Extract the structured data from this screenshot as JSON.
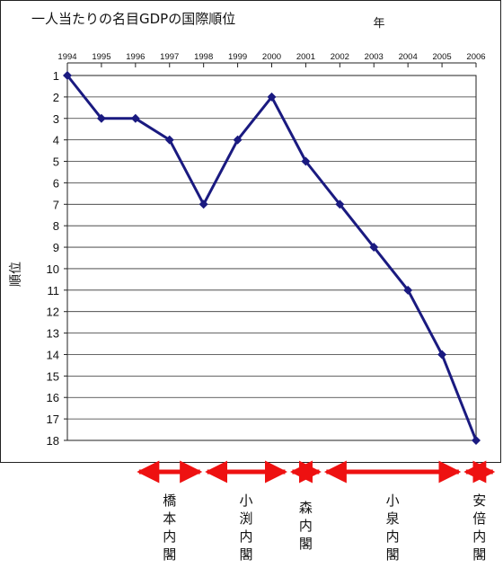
{
  "chart_data": {
    "type": "line",
    "title": "一人当たりの名目GDPの国際順位",
    "xlabel": "年",
    "ylabel": "順位",
    "x": [
      1994,
      1995,
      1996,
      1997,
      1998,
      1999,
      2000,
      2001,
      2002,
      2003,
      2004,
      2005,
      2006
    ],
    "series": [
      {
        "values": [
          1,
          3,
          3,
          4,
          7,
          4,
          2,
          5,
          7,
          9,
          11,
          14,
          18
        ]
      }
    ],
    "ylim": [
      1,
      18
    ],
    "y_inverted": true,
    "x_axis_position": "top",
    "grid": true,
    "line_color": "#1a1a80",
    "annotations": [
      {
        "label": "橋本内閣",
        "start": 1996,
        "end": 1998
      },
      {
        "label": "小渕内閣",
        "start": 1998,
        "end": 2000.5
      },
      {
        "label": "森内閣",
        "start": 2000.5,
        "end": 2001.5
      },
      {
        "label": "小泉内閣",
        "start": 2001.5,
        "end": 2005.6
      },
      {
        "label": "安倍内閣",
        "start": 2005.6,
        "end": 2006.6
      }
    ],
    "annotation_color": "#ee1111"
  }
}
